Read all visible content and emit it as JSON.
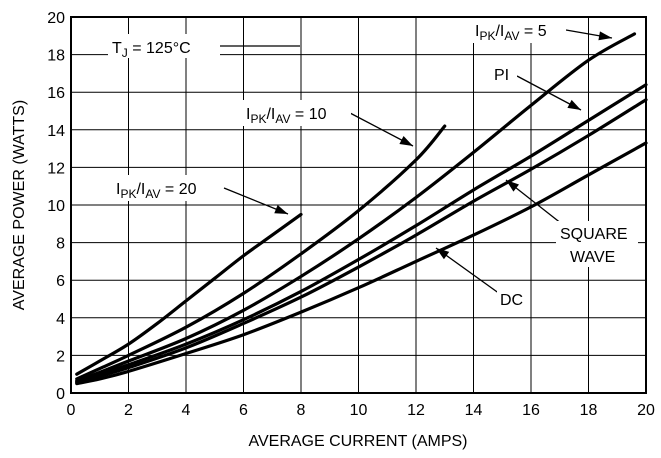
{
  "chart_data": {
    "type": "line",
    "xlabel": "AVERAGE CURRENT (AMPS)",
    "ylabel": "AVERAGE POWER (WATTS)",
    "xlim": [
      0,
      20
    ],
    "ylim": [
      0,
      20
    ],
    "xticks": [
      0,
      2,
      4,
      6,
      8,
      10,
      12,
      14,
      16,
      18,
      20
    ],
    "yticks": [
      0,
      2,
      4,
      6,
      8,
      10,
      12,
      14,
      16,
      18,
      20
    ],
    "grid": true,
    "annotations": {
      "tj": {
        "main": "T",
        "sub": "J",
        "rest": " = 125°C"
      }
    },
    "series": [
      {
        "key": "ratio20",
        "label": {
          "a": "I",
          "a_sub": "PK",
          "b": "/I",
          "b_sub": "AV",
          "rest": " = 20"
        },
        "points": [
          [
            0.2,
            1.0
          ],
          [
            1,
            1.7
          ],
          [
            2,
            2.6
          ],
          [
            3,
            3.7
          ],
          [
            4,
            4.9
          ],
          [
            5,
            6.1
          ],
          [
            6,
            7.3
          ],
          [
            7,
            8.4
          ],
          [
            8,
            9.5
          ]
        ]
      },
      {
        "key": "ratio10",
        "label": {
          "a": "I",
          "a_sub": "PK",
          "b": "/I",
          "b_sub": "AV",
          "rest": " = 10"
        },
        "points": [
          [
            0.2,
            0.75
          ],
          [
            1,
            1.3
          ],
          [
            2,
            2.0
          ],
          [
            4,
            3.5
          ],
          [
            6,
            5.3
          ],
          [
            8,
            7.4
          ],
          [
            10,
            9.7
          ],
          [
            12,
            12.4
          ],
          [
            13,
            14.2
          ]
        ]
      },
      {
        "key": "ratio5",
        "label": {
          "a": "I",
          "a_sub": "PK",
          "b": "/I",
          "b_sub": "AV",
          "rest": " = 5"
        },
        "points": [
          [
            0.2,
            0.65
          ],
          [
            1,
            1.1
          ],
          [
            2,
            1.7
          ],
          [
            4,
            2.9
          ],
          [
            6,
            4.4
          ],
          [
            8,
            6.2
          ],
          [
            10,
            8.2
          ],
          [
            12,
            10.4
          ],
          [
            14,
            12.8
          ],
          [
            16,
            15.3
          ],
          [
            18,
            17.7
          ],
          [
            19.6,
            19.1
          ]
        ]
      },
      {
        "key": "pi",
        "label": {
          "a": "PI"
        },
        "points": [
          [
            0.2,
            0.6
          ],
          [
            1,
            1.0
          ],
          [
            2,
            1.5
          ],
          [
            4,
            2.6
          ],
          [
            6,
            3.9
          ],
          [
            8,
            5.4
          ],
          [
            10,
            7.1
          ],
          [
            12,
            8.9
          ],
          [
            14,
            10.8
          ],
          [
            16,
            12.6
          ],
          [
            18,
            14.5
          ],
          [
            20,
            16.4
          ]
        ]
      },
      {
        "key": "square",
        "label": {
          "line1": "SQUARE",
          "line2": "WAVE"
        },
        "points": [
          [
            0.2,
            0.55
          ],
          [
            1,
            0.9
          ],
          [
            2,
            1.35
          ],
          [
            4,
            2.4
          ],
          [
            6,
            3.7
          ],
          [
            8,
            5.1
          ],
          [
            10,
            6.7
          ],
          [
            12,
            8.4
          ],
          [
            14,
            10.2
          ],
          [
            16,
            11.9
          ],
          [
            18,
            13.7
          ],
          [
            20,
            15.6
          ]
        ]
      },
      {
        "key": "dc",
        "label": {
          "a": "DC"
        },
        "points": [
          [
            0.2,
            0.5
          ],
          [
            1,
            0.75
          ],
          [
            2,
            1.15
          ],
          [
            4,
            2.1
          ],
          [
            6,
            3.1
          ],
          [
            8,
            4.3
          ],
          [
            10,
            5.6
          ],
          [
            12,
            7.0
          ],
          [
            14,
            8.4
          ],
          [
            16,
            9.9
          ],
          [
            18,
            11.6
          ],
          [
            20,
            13.3
          ]
        ]
      }
    ]
  }
}
